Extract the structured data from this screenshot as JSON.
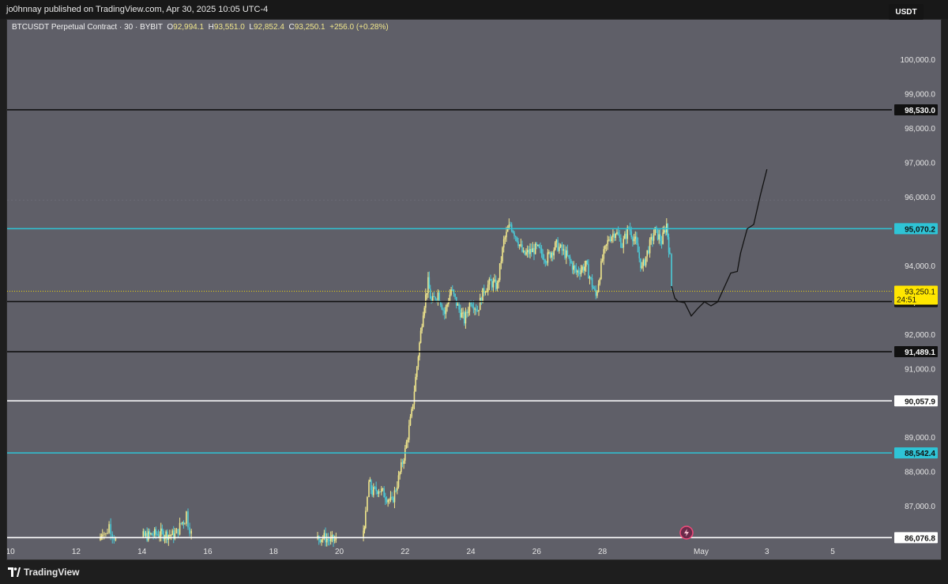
{
  "header": {
    "published": "jo0hnnay published on TradingView.com, Apr 30, 2025 10:05 UTC-4"
  },
  "legend": {
    "symbol": "BTCUSDT Perpetual Contract · 30 · BYBIT",
    "o_label": "O",
    "o": "92,994.1",
    "h_label": "H",
    "h": "93,551.0",
    "l_label": "L",
    "l": "92,852.4",
    "c_label": "C",
    "c": "93,250.1",
    "change": "+256.0 (+0.28%)"
  },
  "currency": "USDT",
  "footer": {
    "brand": "TradingView"
  },
  "colors": {
    "background": "#5f5f68",
    "candle_up": "#f0e68c",
    "candle_down": "#4cc9d6",
    "level_black": "#111111",
    "level_white": "#ffffff",
    "level_cyan": "#2ec4d6",
    "current_price": "#ffe600"
  },
  "chart_data": {
    "type": "line",
    "title": "",
    "ylim": [
      85900,
      100600
    ],
    "y_ticks": [
      "100,000.0",
      "99,000.0",
      "98,000.0",
      "97,000.0",
      "96,000.0",
      "94,000.0",
      "92,000.0",
      "91,000.0",
      "89,000.0",
      "88,000.0",
      "87,000.0"
    ],
    "y_tick_values": [
      100000,
      99000,
      98000,
      97000,
      96000,
      94000,
      92000,
      91000,
      89000,
      88000,
      87000
    ],
    "x_ticks": [
      "10",
      "12",
      "14",
      "16",
      "18",
      "20",
      "22",
      "24",
      "26",
      "28",
      "May",
      "3",
      "5"
    ],
    "x_tick_days": [
      10,
      12,
      14,
      16,
      18,
      20,
      22,
      24,
      26,
      28,
      31,
      33,
      35
    ],
    "xlim_days": [
      9.9,
      36.8
    ],
    "levels": [
      {
        "value": 98530.0,
        "label": "98,530.0",
        "style": "black"
      },
      {
        "value": 95070.2,
        "label": "95,070.2",
        "style": "cyan"
      },
      {
        "value": 92949.4,
        "label": "92,949.4",
        "style": "black"
      },
      {
        "value": 91489.1,
        "label": "91,489.1",
        "style": "black"
      },
      {
        "value": 90057.9,
        "label": "90,057.9",
        "style": "white"
      },
      {
        "value": 88542.4,
        "label": "88,542.4",
        "style": "cyan"
      },
      {
        "value": 86076.8,
        "label": "86,076.8",
        "style": "white"
      }
    ],
    "current_price": {
      "value": 93250.1,
      "label": "93,250.1",
      "countdown": "24:51"
    },
    "series": [
      {
        "name": "",
        "x_days": [
          12.7,
          12.8,
          12.9,
          13.0,
          13.1,
          13.2,
          14.0,
          14.5,
          15.0,
          15.1,
          15.2,
          15.3,
          15.35,
          15.4,
          15.5,
          16.6,
          17.5,
          19.3,
          19.5,
          19.7,
          19.9,
          20.7,
          20.8,
          20.9,
          21.0,
          21.2,
          21.4,
          21.6,
          21.8,
          22.0,
          22.2,
          22.4,
          22.55,
          22.7,
          22.8,
          23.0,
          23.2,
          23.4,
          23.6,
          23.8,
          24.0,
          24.2,
          24.4,
          24.6,
          24.8,
          25.0,
          25.2,
          25.4,
          25.6,
          25.8,
          26.0,
          26.3,
          26.6,
          26.9,
          27.2,
          27.5,
          27.8,
          28.0,
          28.2,
          28.4,
          28.6,
          28.8,
          29.0,
          29.2,
          29.4,
          29.6,
          29.8,
          29.95,
          30.05,
          30.1
        ],
        "values": [
          86000,
          86300,
          86150,
          86450,
          86200,
          86000,
          86100,
          86200,
          86150,
          86300,
          86500,
          86600,
          86800,
          86500,
          86200,
          86100,
          86050,
          86050,
          86100,
          86000,
          86000,
          86100,
          86700,
          87700,
          87400,
          87500,
          87300,
          87100,
          87800,
          88600,
          89700,
          91400,
          92700,
          93500,
          92900,
          93200,
          92600,
          93300,
          92800,
          92400,
          93000,
          92700,
          93300,
          93500,
          93400,
          94700,
          95200,
          94800,
          94300,
          94400,
          94500,
          94200,
          94600,
          94300,
          93800,
          94000,
          93100,
          94200,
          94800,
          95000,
          94600,
          95100,
          94700,
          93900,
          94500,
          95000,
          94700,
          95200,
          94200,
          93400
        ]
      },
      {
        "name": "",
        "x_days": [
          30.1,
          30.2,
          30.3,
          30.5,
          30.7,
          30.9,
          31.1,
          31.3,
          31.5,
          31.7,
          31.9,
          32.1,
          32.2,
          32.4,
          32.6,
          32.8,
          33.0
        ],
        "values": [
          93400,
          93000,
          92900,
          92950,
          92500,
          92800,
          92900,
          92800,
          92900,
          93300,
          93800,
          93800,
          94400,
          95100,
          95200,
          96100,
          96800
        ]
      }
    ]
  }
}
